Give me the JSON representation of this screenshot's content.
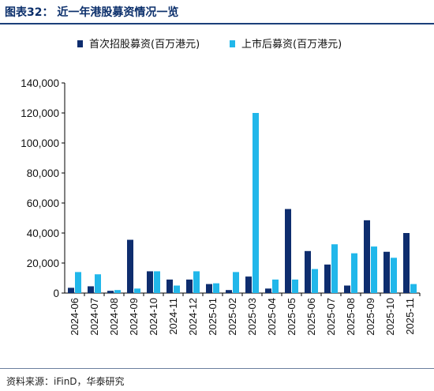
{
  "header": {
    "title": "图表32：  近一年港股募资情况一览"
  },
  "footer": {
    "source": "资料来源：iFinD，华泰研究"
  },
  "colors": {
    "series1": "#0e2d6e",
    "series2": "#21b7ea",
    "axis": "#000000",
    "title": "#0b2f6b"
  },
  "chart_data": {
    "type": "bar",
    "title": "",
    "xlabel": "",
    "ylabel": "",
    "ylim": [
      0,
      140000
    ],
    "yticks": [
      "0",
      "20,000",
      "40,000",
      "60,000",
      "80,000",
      "100,000",
      "120,000",
      "140,000"
    ],
    "ytick_values": [
      0,
      20000,
      40000,
      60000,
      80000,
      100000,
      120000,
      140000
    ],
    "grid": false,
    "legend_position": "top",
    "categories": [
      "2024-06",
      "2024-07",
      "2024-08",
      "2024-09",
      "2024-10",
      "2024-11",
      "2024-12",
      "2025-01",
      "2025-02",
      "2025-03",
      "2025-04",
      "2025-05",
      "2025-06",
      "2025-07",
      "2025-08",
      "2025-09",
      "2025-10",
      "2025-11"
    ],
    "series": [
      {
        "name": "首次招股募资(百万港元)",
        "values": [
          3500,
          4500,
          1500,
          35500,
          14500,
          9000,
          9000,
          6000,
          2000,
          11000,
          3000,
          56000,
          28000,
          19000,
          5000,
          48500,
          27500,
          40000
        ]
      },
      {
        "name": "上市后募资(百万港元)",
        "values": [
          14000,
          12500,
          2000,
          3000,
          14500,
          5000,
          14500,
          6500,
          14000,
          120000,
          9000,
          9000,
          16000,
          32500,
          26500,
          31000,
          23500,
          6000
        ]
      }
    ]
  }
}
